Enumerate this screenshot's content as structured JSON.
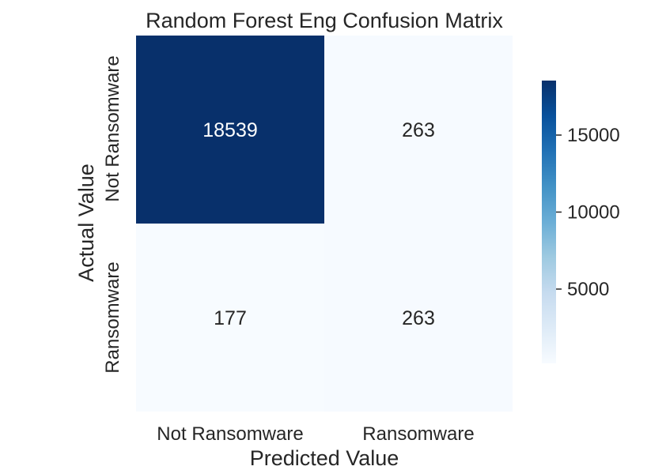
{
  "chart_data": {
    "type": "heatmap",
    "title": "Random Forest Eng Confusion Matrix",
    "xlabel": "Predicted Value",
    "ylabel": "Actual Value",
    "x_categories": [
      "Not Ransomware",
      "Ransomware"
    ],
    "y_categories": [
      "Not Ransomware",
      "Ransomware"
    ],
    "values": [
      [
        18539,
        263
      ],
      [
        177,
        263
      ]
    ],
    "colormap": "Blues",
    "colorbar": {
      "ticks": [
        5000,
        10000,
        15000
      ],
      "tick_labels": [
        "5000",
        "10000",
        "15000"
      ]
    }
  },
  "colors": {
    "low": "#f7fbff",
    "high": "#08306b",
    "text_dark": "#262626",
    "text_light": "#ffffff"
  }
}
